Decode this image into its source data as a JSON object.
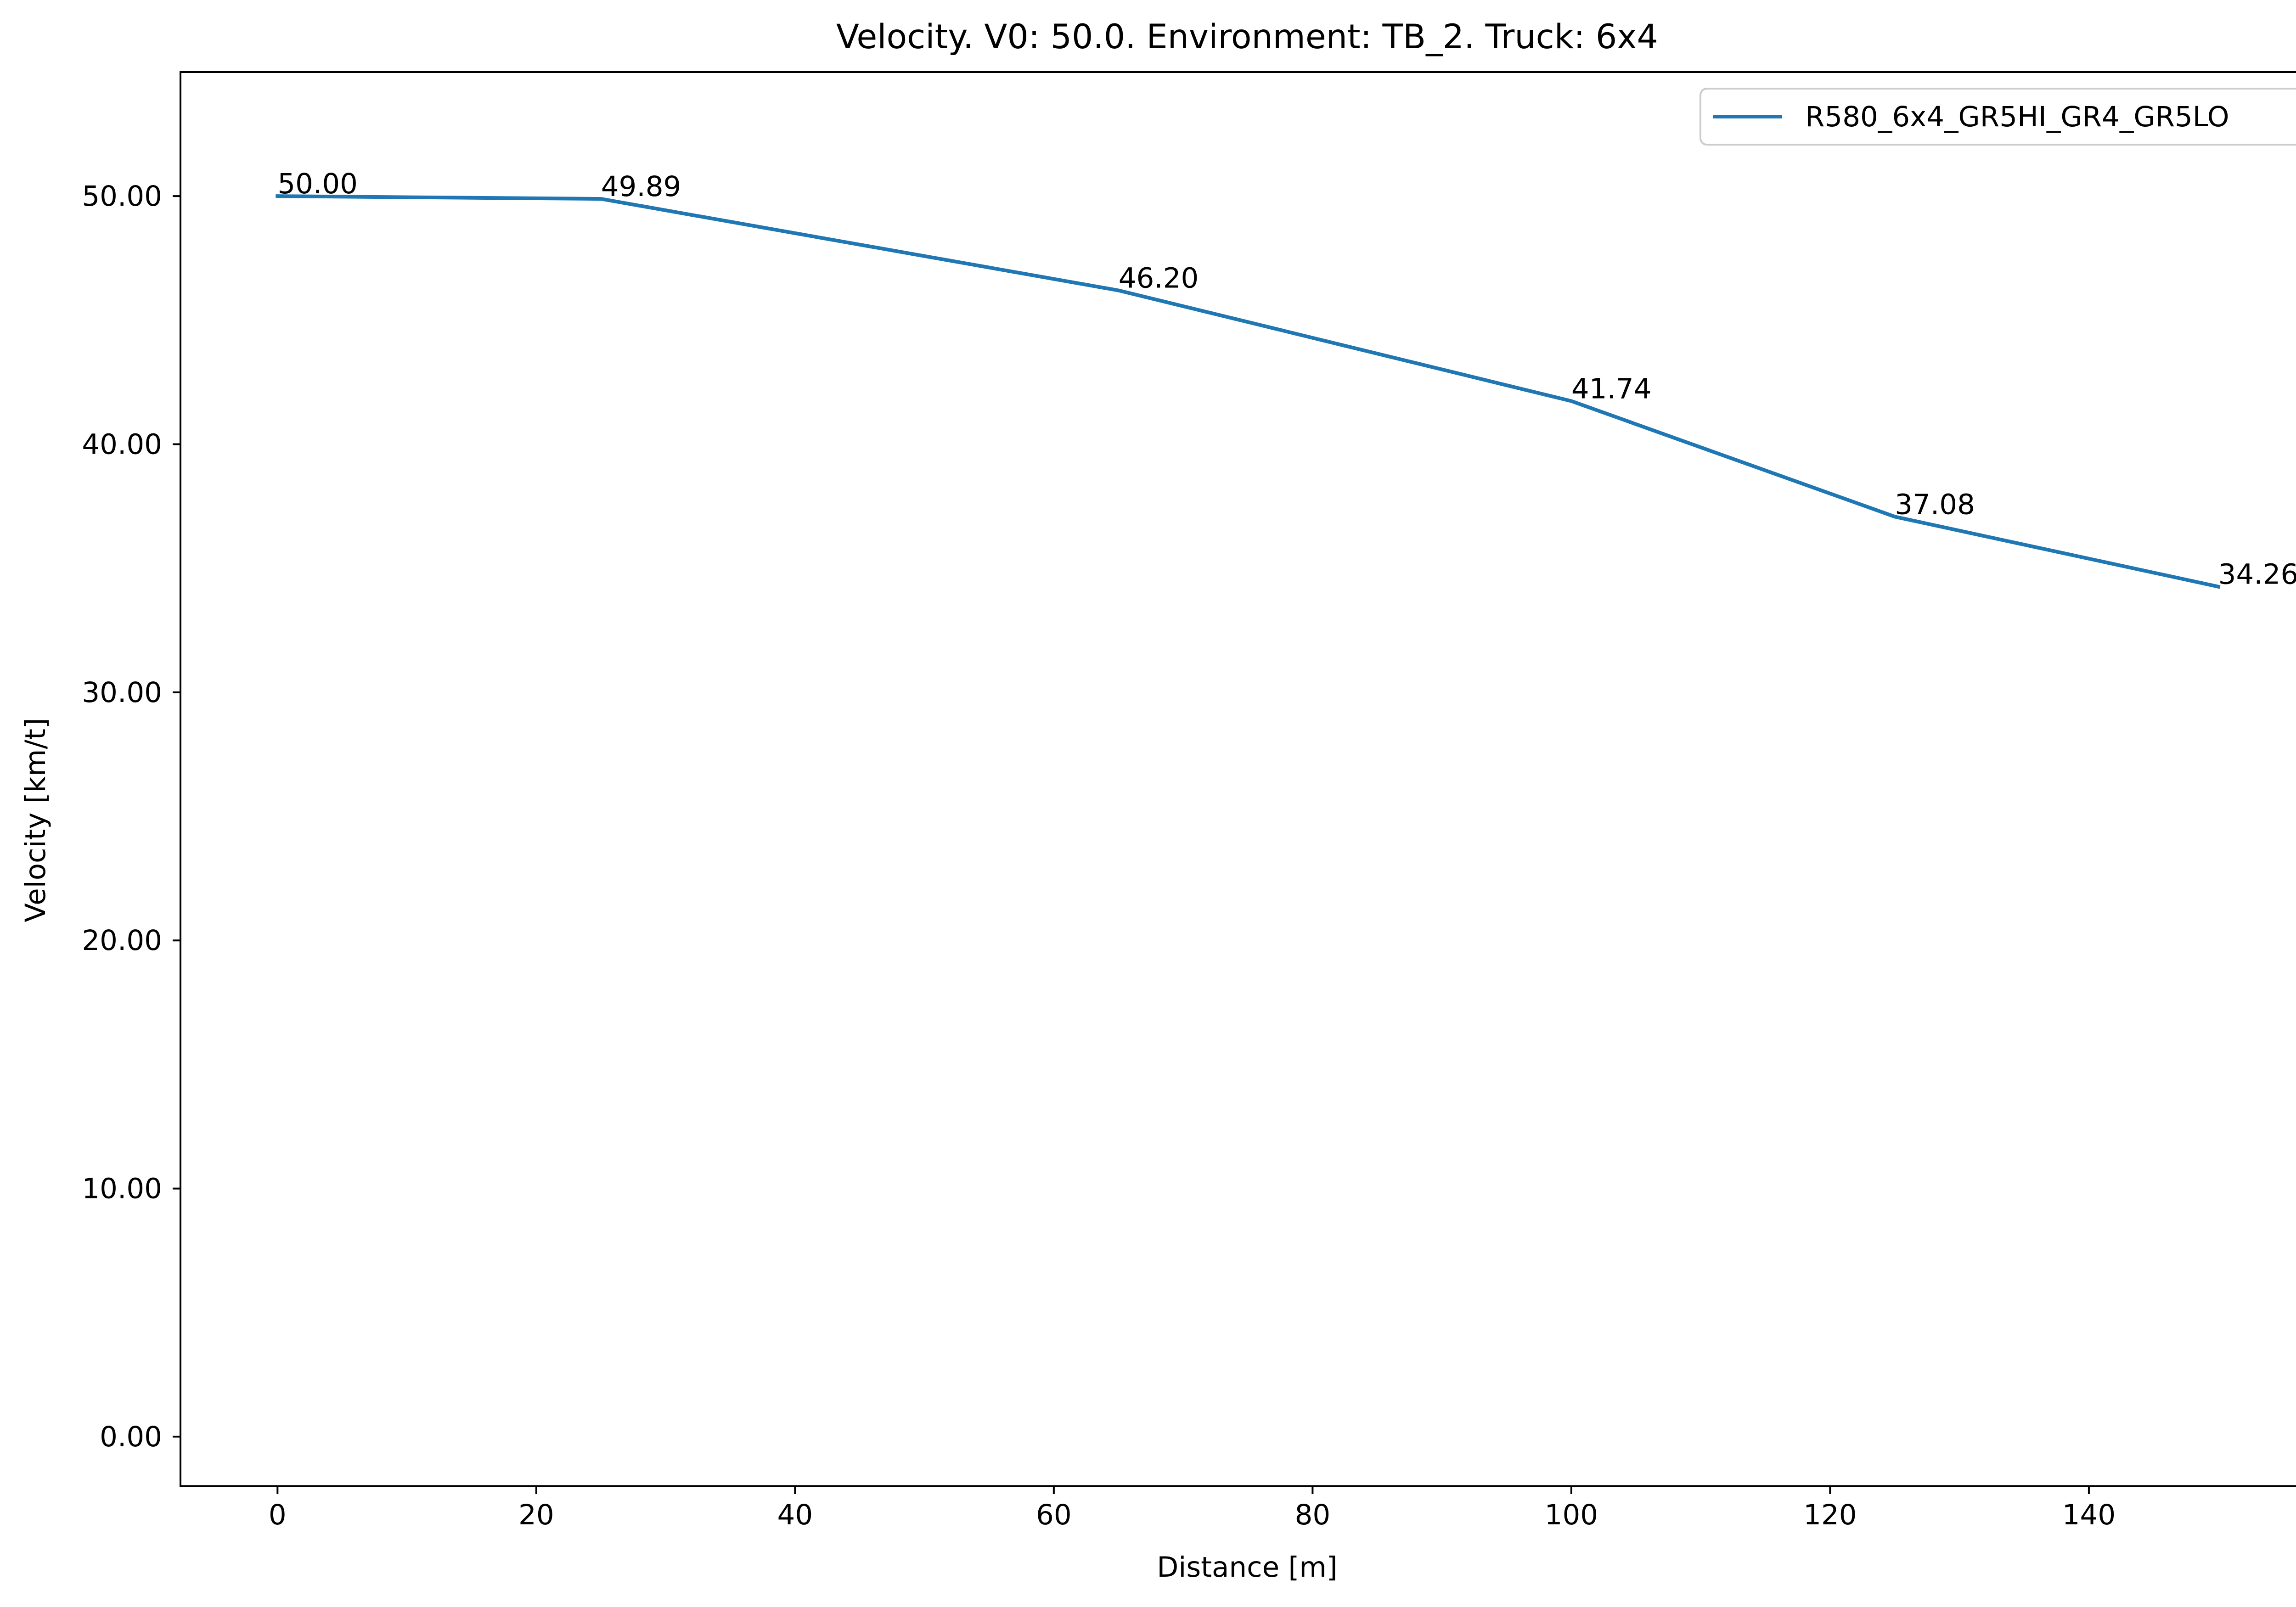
{
  "chart_data": {
    "type": "line",
    "title": "Velocity. V0: 50.0. Environment: TB_2. Truck: 6x4",
    "xlabel": "Distance [m]",
    "ylabel": "Velocity [km/t]",
    "xlim": [
      -7.5,
      157.5
    ],
    "ylim": [
      -2.0,
      55.0
    ],
    "x_ticks": [
      0,
      20,
      40,
      60,
      80,
      100,
      120,
      140
    ],
    "x_tick_labels": [
      "0",
      "20",
      "40",
      "60",
      "80",
      "100",
      "120",
      "140"
    ],
    "y_ticks": [
      0,
      10,
      20,
      30,
      40,
      50
    ],
    "y_tick_labels": [
      "0.00",
      "10.00",
      "20.00",
      "30.00",
      "40.00",
      "50.00"
    ],
    "grid": false,
    "legend_position": "top-right",
    "series": [
      {
        "name": "R580_6x4_GR5HI_GR4_GR5LO",
        "color": "#1f77b4",
        "x": [
          0,
          25,
          65,
          100,
          125,
          150
        ],
        "y": [
          50.0,
          49.89,
          46.2,
          41.74,
          37.08,
          34.26
        ],
        "labels": [
          "50.00",
          "49.89",
          "46.20",
          "41.74",
          "37.08",
          "34.26"
        ]
      }
    ]
  }
}
